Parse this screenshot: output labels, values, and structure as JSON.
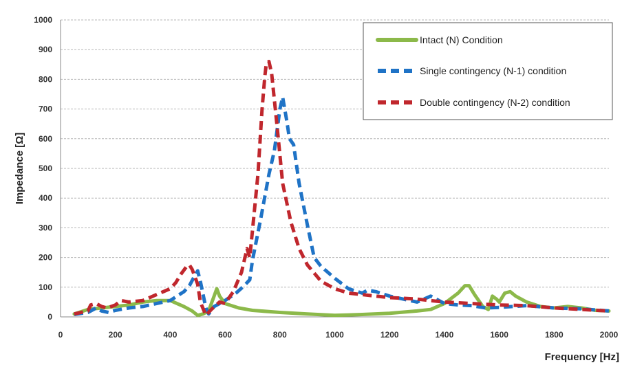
{
  "chart_data": {
    "type": "line",
    "title": "",
    "xlabel": "Frequency [Hz]",
    "ylabel": "Impedance [Ω]",
    "xlim": [
      0,
      2000
    ],
    "ylim": [
      0,
      1000
    ],
    "x_ticks": [
      "0",
      "200",
      "400",
      "600",
      "800",
      "1000",
      "1200",
      "1400",
      "1600",
      "1800",
      "2000"
    ],
    "y_ticks": [
      "0",
      "100",
      "200",
      "300",
      "400",
      "500",
      "600",
      "700",
      "800",
      "900",
      "1000"
    ],
    "grid": true,
    "legend_position": "top-right",
    "series": [
      {
        "name": "Intact (N) Condition",
        "color": "#8cb94a",
        "style": "solid",
        "points": [
          [
            50,
            10
          ],
          [
            100,
            25
          ],
          [
            150,
            30
          ],
          [
            200,
            35
          ],
          [
            250,
            40
          ],
          [
            300,
            50
          ],
          [
            350,
            55
          ],
          [
            400,
            55
          ],
          [
            450,
            35
          ],
          [
            480,
            20
          ],
          [
            500,
            5
          ],
          [
            520,
            10
          ],
          [
            540,
            20
          ],
          [
            560,
            70
          ],
          [
            570,
            95
          ],
          [
            580,
            70
          ],
          [
            600,
            45
          ],
          [
            650,
            30
          ],
          [
            700,
            22
          ],
          [
            800,
            15
          ],
          [
            900,
            10
          ],
          [
            1000,
            5
          ],
          [
            1100,
            8
          ],
          [
            1200,
            12
          ],
          [
            1300,
            20
          ],
          [
            1350,
            25
          ],
          [
            1400,
            45
          ],
          [
            1450,
            80
          ],
          [
            1475,
            105
          ],
          [
            1490,
            105
          ],
          [
            1510,
            75
          ],
          [
            1540,
            35
          ],
          [
            1560,
            25
          ],
          [
            1575,
            70
          ],
          [
            1590,
            60
          ],
          [
            1600,
            50
          ],
          [
            1620,
            80
          ],
          [
            1640,
            85
          ],
          [
            1660,
            70
          ],
          [
            1700,
            50
          ],
          [
            1750,
            35
          ],
          [
            1800,
            30
          ],
          [
            1850,
            35
          ],
          [
            1900,
            30
          ],
          [
            1950,
            22
          ],
          [
            2000,
            20
          ]
        ]
      },
      {
        "name": "Single contingency (N-1) condition",
        "color": "#1f73c6",
        "style": "dashed",
        "points": [
          [
            50,
            8
          ],
          [
            100,
            15
          ],
          [
            130,
            30
          ],
          [
            150,
            20
          ],
          [
            175,
            15
          ],
          [
            200,
            22
          ],
          [
            250,
            30
          ],
          [
            300,
            35
          ],
          [
            350,
            45
          ],
          [
            400,
            55
          ],
          [
            450,
            85
          ],
          [
            470,
            105
          ],
          [
            490,
            140
          ],
          [
            500,
            155
          ],
          [
            510,
            120
          ],
          [
            530,
            30
          ],
          [
            540,
            10
          ],
          [
            560,
            35
          ],
          [
            600,
            55
          ],
          [
            640,
            80
          ],
          [
            670,
            105
          ],
          [
            690,
            125
          ],
          [
            700,
            190
          ],
          [
            730,
            330
          ],
          [
            760,
            480
          ],
          [
            780,
            560
          ],
          [
            800,
            700
          ],
          [
            810,
            740
          ],
          [
            825,
            660
          ],
          [
            835,
            600
          ],
          [
            850,
            580
          ],
          [
            870,
            450
          ],
          [
            900,
            310
          ],
          [
            925,
            200
          ],
          [
            950,
            170
          ],
          [
            1000,
            130
          ],
          [
            1050,
            95
          ],
          [
            1100,
            80
          ],
          [
            1120,
            90
          ],
          [
            1150,
            85
          ],
          [
            1200,
            70
          ],
          [
            1300,
            50
          ],
          [
            1350,
            70
          ],
          [
            1380,
            55
          ],
          [
            1400,
            45
          ],
          [
            1450,
            40
          ],
          [
            1500,
            38
          ],
          [
            1550,
            30
          ],
          [
            1600,
            32
          ],
          [
            1700,
            38
          ],
          [
            1800,
            30
          ],
          [
            1900,
            27
          ],
          [
            2000,
            20
          ]
        ]
      },
      {
        "name": "Double contingency (N-2) condition",
        "color": "#c0272d",
        "style": "dashed",
        "points": [
          [
            50,
            10
          ],
          [
            100,
            20
          ],
          [
            110,
            40
          ],
          [
            130,
            45
          ],
          [
            150,
            35
          ],
          [
            170,
            30
          ],
          [
            200,
            40
          ],
          [
            220,
            55
          ],
          [
            250,
            50
          ],
          [
            300,
            55
          ],
          [
            350,
            75
          ],
          [
            400,
            95
          ],
          [
            420,
            115
          ],
          [
            440,
            145
          ],
          [
            460,
            170
          ],
          [
            470,
            175
          ],
          [
            480,
            160
          ],
          [
            500,
            110
          ],
          [
            510,
            50
          ],
          [
            530,
            5
          ],
          [
            550,
            25
          ],
          [
            580,
            50
          ],
          [
            600,
            45
          ],
          [
            630,
            85
          ],
          [
            660,
            150
          ],
          [
            680,
            230
          ],
          [
            690,
            200
          ],
          [
            700,
            290
          ],
          [
            720,
            480
          ],
          [
            735,
            700
          ],
          [
            745,
            810
          ],
          [
            750,
            850
          ],
          [
            760,
            860
          ],
          [
            770,
            820
          ],
          [
            790,
            640
          ],
          [
            810,
            450
          ],
          [
            840,
            320
          ],
          [
            870,
            230
          ],
          [
            900,
            175
          ],
          [
            950,
            120
          ],
          [
            1000,
            95
          ],
          [
            1050,
            80
          ],
          [
            1100,
            75
          ],
          [
            1200,
            65
          ],
          [
            1300,
            60
          ],
          [
            1400,
            50
          ],
          [
            1500,
            45
          ],
          [
            1600,
            40
          ],
          [
            1700,
            38
          ],
          [
            1800,
            30
          ],
          [
            1900,
            25
          ],
          [
            2000,
            20
          ]
        ]
      }
    ]
  }
}
